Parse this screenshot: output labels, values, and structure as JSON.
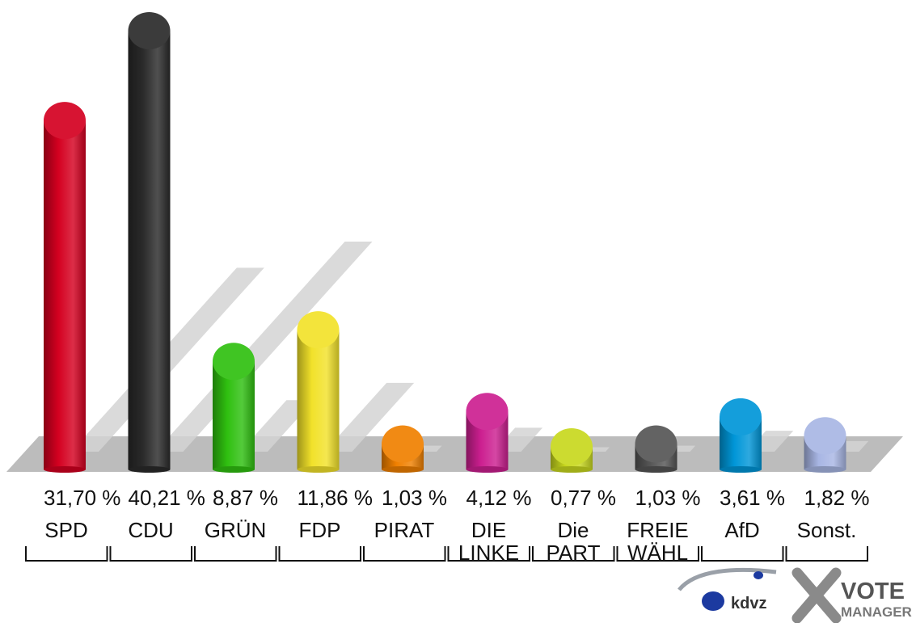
{
  "chart_data": {
    "type": "bar",
    "categories": [
      "SPD",
      "CDU",
      "GRÜN",
      "FDP",
      "PIRAT",
      "DIE LINKE",
      "Die PART",
      "FREIE WÄHL",
      "AfD",
      "Sonst."
    ],
    "category_lines": [
      [
        "SPD"
      ],
      [
        "CDU"
      ],
      [
        "GRÜN"
      ],
      [
        "FDP"
      ],
      [
        "PIRAT"
      ],
      [
        "DIE",
        "LINKE"
      ],
      [
        "Die",
        "PART"
      ],
      [
        "FREIE",
        "WÄHL"
      ],
      [
        "AfD"
      ],
      [
        "Sonst."
      ]
    ],
    "values": [
      31.7,
      40.21,
      8.87,
      11.86,
      1.03,
      4.12,
      0.77,
      1.03,
      3.61,
      1.82
    ],
    "value_labels": [
      "31,70 %",
      "40,21 %",
      "8,87 %",
      "11,86 %",
      "1,03 %",
      "4,12 %",
      "0,77 %",
      "1,03 %",
      "3,61 %",
      "1,82 %"
    ],
    "colors": [
      "#d40020",
      "#2a2a2a",
      "#2fc010",
      "#f2e22a",
      "#f08000",
      "#cc1f90",
      "#c8d81e",
      "#555555",
      "#0096d8",
      "#a8b6e4"
    ],
    "ylim": [
      0,
      40.21
    ],
    "title": "",
    "xlabel": "",
    "ylabel": "",
    "grid": false,
    "legend": "none"
  },
  "branding": {
    "kdvz_logo_text": "kdvz",
    "vote_manager_line1": "VOTE",
    "vote_manager_line2": "MANAGER"
  }
}
